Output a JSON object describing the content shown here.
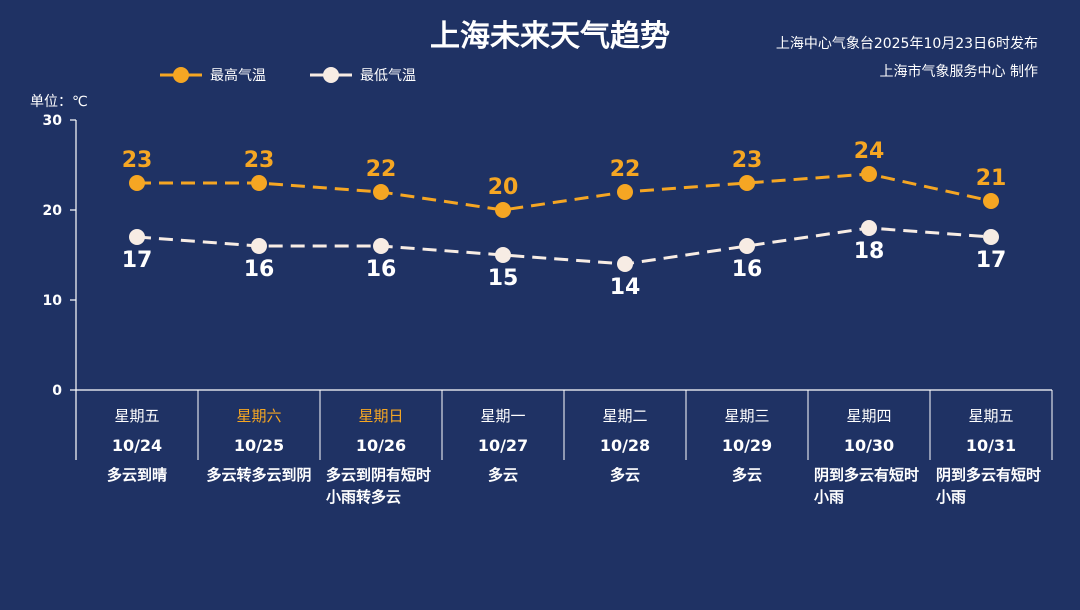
{
  "title": "上海未来天气趋势",
  "publish_info": "上海中心气象台2025年10月23日6时发布",
  "producer": "上海市气象服务中心  制作",
  "unit_label": "单位：℃",
  "colors": {
    "background": "#1f3264",
    "high": "#f5a623",
    "low": "#f7ece4",
    "axis": "#ffffff"
  },
  "chart_data": {
    "type": "line",
    "title": "上海未来天气趋势",
    "ylabel": "单位：℃",
    "ylim": [
      0,
      30
    ],
    "yticks": [
      0,
      10,
      20,
      30
    ],
    "grid": false,
    "legend": "top-left",
    "categories": [
      "10/24",
      "10/25",
      "10/26",
      "10/27",
      "10/28",
      "10/29",
      "10/30",
      "10/31"
    ],
    "weekdays": [
      "星期五",
      "星期六",
      "星期日",
      "星期一",
      "星期二",
      "星期三",
      "星期四",
      "星期五"
    ],
    "weekend": [
      false,
      true,
      true,
      false,
      false,
      false,
      false,
      false
    ],
    "weather": [
      "多云到晴",
      "多云转多云到阴",
      "多云到阴有短时小雨转多云",
      "多云",
      "多云",
      "多云",
      "阴到多云有短时小雨",
      "阴到多云有短时小雨"
    ],
    "series": [
      {
        "name": "最高气温",
        "color": "#f5a623",
        "values": [
          23,
          23,
          22,
          20,
          22,
          23,
          24,
          21
        ]
      },
      {
        "name": "最低气温",
        "color": "#f7ece4",
        "values": [
          17,
          16,
          16,
          15,
          14,
          16,
          18,
          17
        ]
      }
    ]
  }
}
